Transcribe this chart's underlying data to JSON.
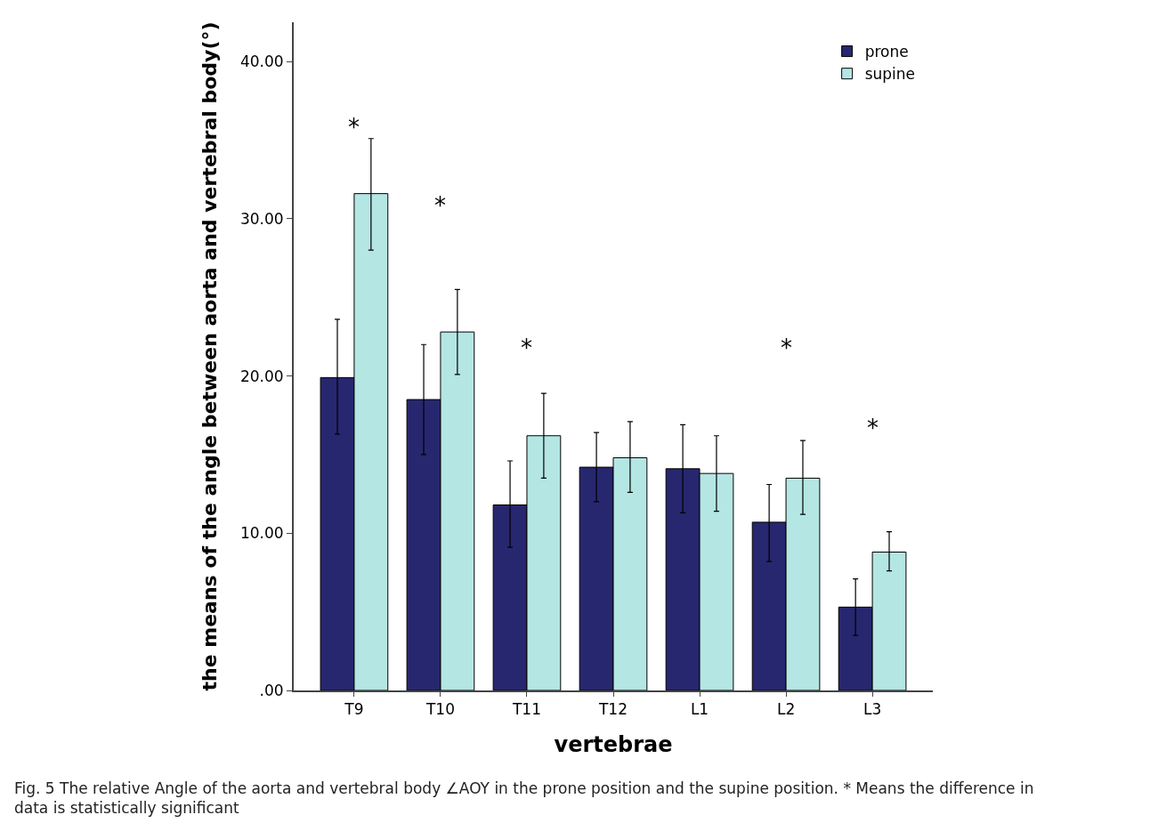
{
  "chart_data": {
    "type": "bar",
    "xlabel": "vertebrae",
    "ylabel": "the means of the angle between aorta and vertebral body(°)",
    "categories": [
      "T9",
      "T10",
      "T11",
      "T12",
      "L1",
      "L2",
      "L3"
    ],
    "series": [
      {
        "name": "prone",
        "color": "#27276f",
        "values": [
          19.9,
          18.5,
          11.8,
          14.2,
          14.1,
          10.7,
          5.3
        ],
        "errors": [
          [
            16.3,
            23.6
          ],
          [
            15.0,
            22.0
          ],
          [
            9.1,
            14.6
          ],
          [
            12.0,
            16.4
          ],
          [
            11.3,
            16.9
          ],
          [
            8.2,
            13.1
          ],
          [
            3.5,
            7.1
          ]
        ]
      },
      {
        "name": "supine",
        "color": "#b4e6e4",
        "values": [
          31.6,
          22.8,
          16.2,
          14.8,
          13.8,
          13.5,
          8.8
        ],
        "errors": [
          [
            28.0,
            35.1
          ],
          [
            20.1,
            25.5
          ],
          [
            13.5,
            18.9
          ],
          [
            12.6,
            17.1
          ],
          [
            11.4,
            16.2
          ],
          [
            11.2,
            15.9
          ],
          [
            7.6,
            10.1
          ]
        ]
      }
    ],
    "ylim": [
      0,
      42.5
    ],
    "yticks": [
      {
        "value": 0,
        "label": ".00"
      },
      {
        "value": 10,
        "label": "10.00"
      },
      {
        "value": 20,
        "label": "20.00"
      },
      {
        "value": 30,
        "label": "30.00"
      },
      {
        "value": 40,
        "label": "40.00"
      }
    ],
    "grid": false,
    "legend": "top right",
    "annotations": [
      "*",
      "*",
      "*",
      "*",
      "*",
      "Fig. 5 The relative Angle of the aorta and vertebral body ∠AOY in the prone position and the supine position. * Means the difference in data is statistically significant"
    ]
  }
}
